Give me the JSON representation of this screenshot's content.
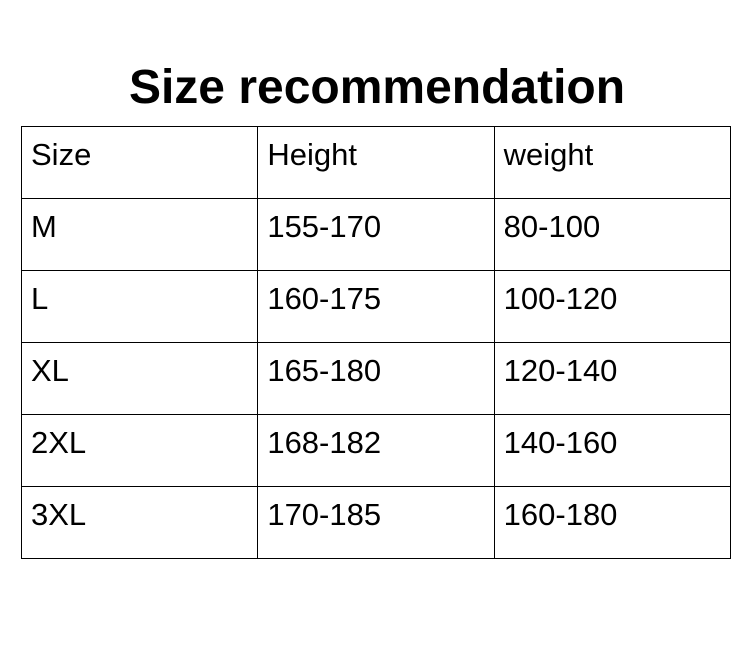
{
  "title": "Size recommendation",
  "table": {
    "headers": [
      "Size",
      "Height",
      "weight"
    ],
    "rows": [
      [
        "M",
        "155-170",
        "80-100"
      ],
      [
        "L",
        "160-175",
        "100-120"
      ],
      [
        "XL",
        "165-180",
        "120-140"
      ],
      [
        "2XL",
        "168-182",
        "140-160"
      ],
      [
        "3XL",
        "170-185",
        "160-180"
      ]
    ]
  }
}
